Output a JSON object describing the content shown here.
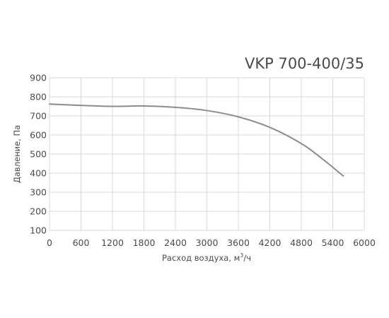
{
  "chart_data": {
    "type": "line",
    "title": "VKP 700-400/35",
    "xlabel": "Расход воздуха, м",
    "xlabel_sup": "3",
    "xlabel_suffix": "/ч",
    "ylabel": "Давление, Па",
    "xlim": [
      0,
      6000
    ],
    "ylim": [
      100,
      900
    ],
    "x_ticks": [
      "0",
      "600",
      "1200",
      "1800",
      "2400",
      "3000",
      "3600",
      "4200",
      "4800",
      "5400",
      "6000"
    ],
    "y_ticks": [
      "900",
      "800",
      "700",
      "600",
      "500",
      "400",
      "300",
      "200",
      "100"
    ],
    "grid": true,
    "line_color": "#8c8c8c",
    "grid_color": "#d9d9d9",
    "series": [
      {
        "x": [
          0,
          600,
          1200,
          1800,
          2400,
          3000,
          3600,
          4200,
          4800,
          5200,
          5600
        ],
        "y": [
          762,
          755,
          750,
          752,
          745,
          728,
          695,
          640,
          555,
          475,
          385
        ]
      }
    ]
  }
}
